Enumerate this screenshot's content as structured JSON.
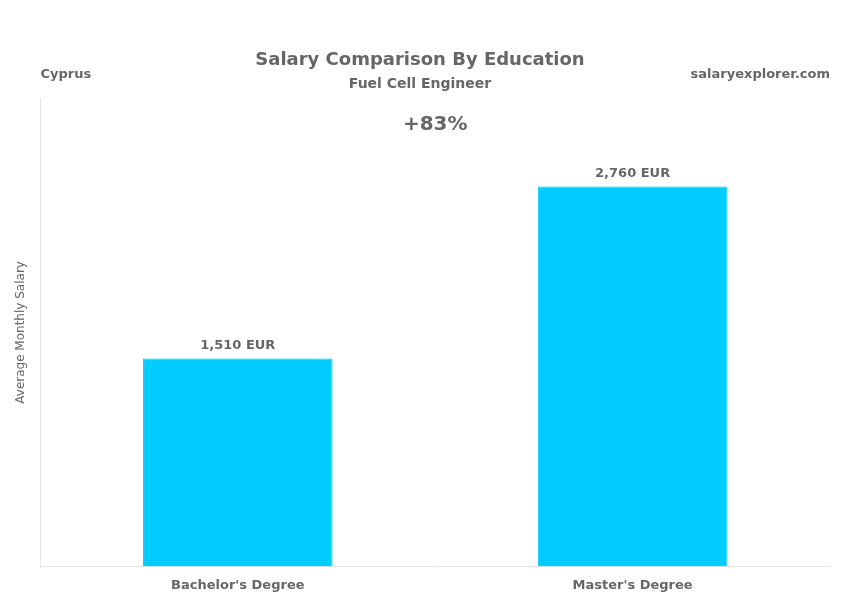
{
  "chart_data": {
    "type": "bar",
    "title": "Salary Comparison By Education",
    "subtitle": "Fuel Cell Engineer",
    "annotations": [
      "Cyprus",
      "salaryexplorer.com",
      "+83%"
    ],
    "ylabel": "Average Monthly Salary",
    "categories": [
      "Bachelor's Degree",
      "Master's Degree"
    ],
    "values": [
      1510,
      2760
    ],
    "value_labels": [
      "1,510 EUR",
      "2,760 EUR"
    ],
    "data_labels": true,
    "color": "#00CCFF",
    "ylim": [
      0,
      3400
    ],
    "grid": false,
    "tick_labels": "x"
  }
}
